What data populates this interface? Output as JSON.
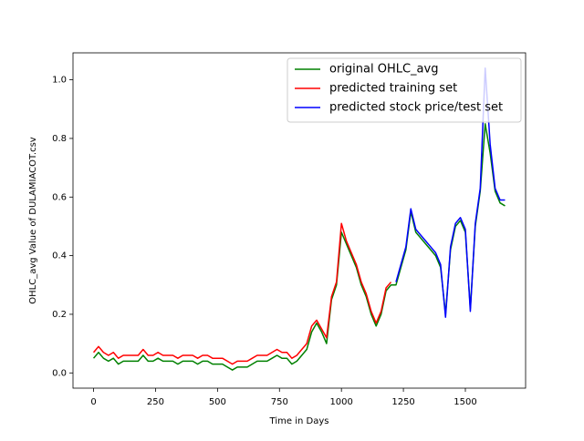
{
  "chart_data": {
    "type": "line",
    "xlabel": "Time in Days",
    "ylabel": "OHLC_avg Value of DULAMIACOT.csv",
    "x": [
      0,
      20,
      40,
      60,
      80,
      100,
      120,
      140,
      160,
      180,
      200,
      220,
      240,
      260,
      280,
      300,
      320,
      340,
      360,
      380,
      400,
      420,
      440,
      460,
      480,
      500,
      520,
      540,
      560,
      580,
      600,
      620,
      640,
      660,
      680,
      700,
      720,
      740,
      760,
      780,
      800,
      820,
      840,
      860,
      880,
      900,
      920,
      940,
      960,
      980,
      1000,
      1020,
      1040,
      1060,
      1080,
      1100,
      1120,
      1140,
      1160,
      1180,
      1200,
      1220,
      1240,
      1260,
      1280,
      1300,
      1320,
      1340,
      1360,
      1380,
      1400,
      1420,
      1440,
      1460,
      1480,
      1500,
      1520,
      1540,
      1560,
      1580,
      1600,
      1620,
      1640,
      1660
    ],
    "series": [
      {
        "name": "original OHLC_avg",
        "color": "#008000",
        "values": [
          0.05,
          0.07,
          0.05,
          0.04,
          0.05,
          0.03,
          0.04,
          0.04,
          0.04,
          0.04,
          0.06,
          0.04,
          0.04,
          0.05,
          0.04,
          0.04,
          0.04,
          0.03,
          0.04,
          0.04,
          0.04,
          0.03,
          0.04,
          0.04,
          0.03,
          0.03,
          0.03,
          0.02,
          0.01,
          0.02,
          0.02,
          0.02,
          0.03,
          0.04,
          0.04,
          0.04,
          0.05,
          0.06,
          0.05,
          0.05,
          0.03,
          0.04,
          0.06,
          0.08,
          0.14,
          0.17,
          0.14,
          0.1,
          0.25,
          0.3,
          0.48,
          0.44,
          0.4,
          0.36,
          0.3,
          0.26,
          0.2,
          0.16,
          0.2,
          0.28,
          0.3,
          0.3,
          0.36,
          0.42,
          0.55,
          0.48,
          0.46,
          0.44,
          0.42,
          0.4,
          0.36,
          0.2,
          0.42,
          0.5,
          0.52,
          0.48,
          0.22,
          0.5,
          0.62,
          0.85,
          0.75,
          0.62,
          0.58,
          0.57
        ]
      },
      {
        "name": "predicted training set",
        "color": "#ff0000",
        "values": [
          0.07,
          0.09,
          0.07,
          0.06,
          0.07,
          0.05,
          0.06,
          0.06,
          0.06,
          0.06,
          0.08,
          0.06,
          0.06,
          0.07,
          0.06,
          0.06,
          0.06,
          0.05,
          0.06,
          0.06,
          0.06,
          0.05,
          0.06,
          0.06,
          0.05,
          0.05,
          0.05,
          0.04,
          0.03,
          0.04,
          0.04,
          0.04,
          0.05,
          0.06,
          0.06,
          0.06,
          0.07,
          0.08,
          0.07,
          0.07,
          0.05,
          0.06,
          0.08,
          0.1,
          0.16,
          0.18,
          0.15,
          0.12,
          0.26,
          0.31,
          0.51,
          0.45,
          0.41,
          0.37,
          0.31,
          0.27,
          0.21,
          0.17,
          0.21,
          0.29,
          0.31,
          null,
          null,
          null,
          null,
          null,
          null,
          null,
          null,
          null,
          null,
          null,
          null,
          null,
          null,
          null,
          null,
          null,
          null,
          null,
          null,
          null,
          null,
          null
        ]
      },
      {
        "name": "predicted stock price/test set",
        "color": "#0000ff",
        "values": [
          null,
          null,
          null,
          null,
          null,
          null,
          null,
          null,
          null,
          null,
          null,
          null,
          null,
          null,
          null,
          null,
          null,
          null,
          null,
          null,
          null,
          null,
          null,
          null,
          null,
          null,
          null,
          null,
          null,
          null,
          null,
          null,
          null,
          null,
          null,
          null,
          null,
          null,
          null,
          null,
          null,
          null,
          null,
          null,
          null,
          null,
          null,
          null,
          null,
          null,
          null,
          null,
          null,
          null,
          null,
          null,
          null,
          null,
          null,
          null,
          null,
          0.31,
          0.37,
          0.43,
          0.56,
          0.49,
          0.47,
          0.45,
          0.43,
          0.41,
          0.37,
          0.19,
          0.43,
          0.51,
          0.53,
          0.49,
          0.21,
          0.51,
          0.63,
          1.04,
          0.78,
          0.63,
          0.59,
          0.59
        ]
      }
    ],
    "xlim": [
      -83,
      1743
    ],
    "xticks": [
      0,
      250,
      500,
      750,
      1000,
      1250,
      1500
    ],
    "ylim": [
      -0.052,
      1.092
    ],
    "yticks": [
      {
        "value": 0,
        "label": "0.0"
      },
      0.2,
      0.4,
      0.6,
      0.8,
      {
        "value": 1,
        "label": "1.0"
      }
    ],
    "legend": "upper right"
  }
}
